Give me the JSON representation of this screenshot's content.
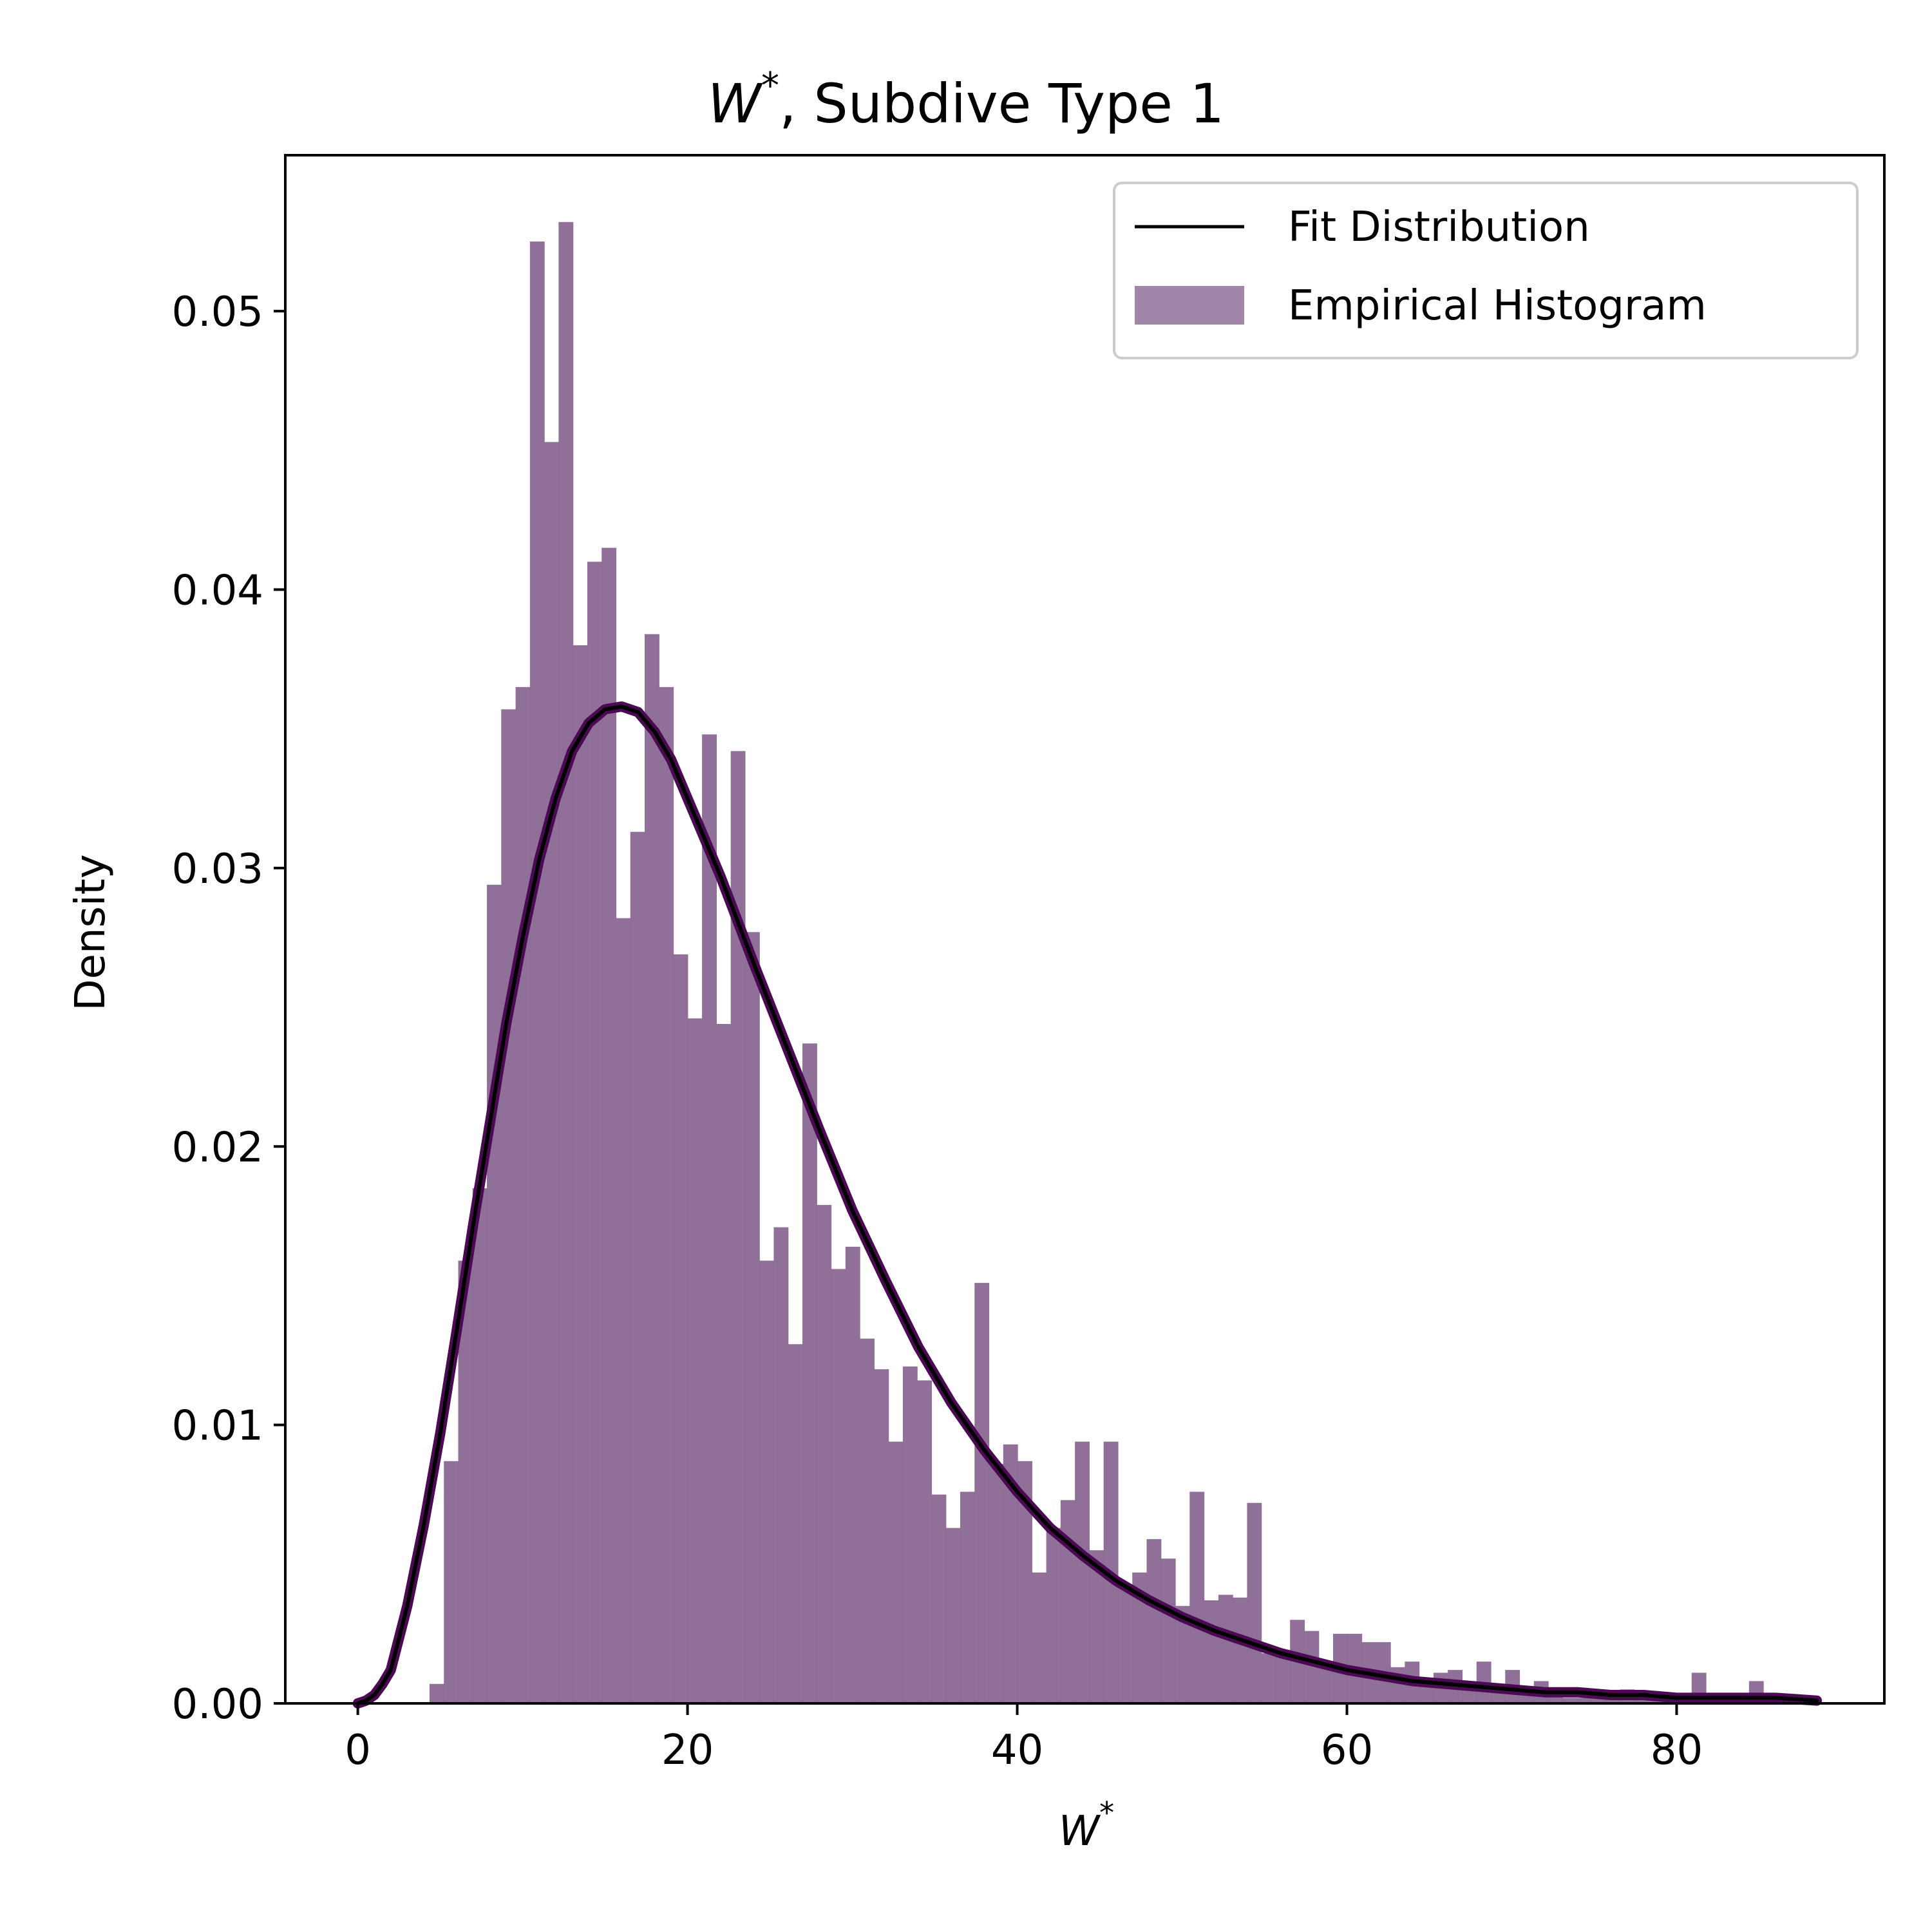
{
  "chart_data": {
    "type": "bar",
    "title": {
      "symbol": "W",
      "sup": "*",
      "text": ", Subdive Type 1"
    },
    "xlabel": {
      "symbol": "W",
      "sup": "*"
    },
    "ylabel": "Density",
    "xlim": [
      -4.4,
      92.6
    ],
    "ylim": [
      0,
      0.0556
    ],
    "xticks": [
      0,
      20,
      40,
      60,
      80
    ],
    "yticks": [
      0.0,
      0.01,
      0.02,
      0.03,
      0.04,
      0.05
    ],
    "ytick_labels": [
      "0.00",
      "0.01",
      "0.02",
      "0.03",
      "0.04",
      "0.05"
    ],
    "grid": false,
    "legend": {
      "placement": "top-right",
      "entries": [
        {
          "label": "Fit Distribution",
          "kind": "line"
        },
        {
          "label": "Empirical Histogram",
          "kind": "patch"
        }
      ]
    },
    "histogram": {
      "name": "Empirical Histogram",
      "color": "#8a6894",
      "bin_width": 0.87,
      "bins": [
        [
          0.0,
          0.0002
        ],
        [
          4.35,
          0.0007
        ],
        [
          5.22,
          0.0087
        ],
        [
          6.09,
          0.0159
        ],
        [
          6.96,
          0.0185
        ],
        [
          7.83,
          0.0294
        ],
        [
          8.7,
          0.0357
        ],
        [
          9.57,
          0.0365
        ],
        [
          10.44,
          0.0525
        ],
        [
          11.31,
          0.0453
        ],
        [
          12.18,
          0.0532
        ],
        [
          13.05,
          0.038
        ],
        [
          13.92,
          0.041
        ],
        [
          14.79,
          0.0415
        ],
        [
          15.66,
          0.0282
        ],
        [
          16.53,
          0.0313
        ],
        [
          17.4,
          0.0384
        ],
        [
          18.27,
          0.0365
        ],
        [
          19.14,
          0.0269
        ],
        [
          20.01,
          0.0246
        ],
        [
          20.88,
          0.0348
        ],
        [
          21.75,
          0.0244
        ],
        [
          22.62,
          0.0342
        ],
        [
          23.49,
          0.0277
        ],
        [
          24.36,
          0.0159
        ],
        [
          25.23,
          0.0171
        ],
        [
          26.1,
          0.0129
        ],
        [
          26.97,
          0.0237
        ],
        [
          27.84,
          0.0179
        ],
        [
          28.71,
          0.0156
        ],
        [
          29.58,
          0.0164
        ],
        [
          30.45,
          0.0131
        ],
        [
          31.32,
          0.012
        ],
        [
          32.19,
          0.0094
        ],
        [
          33.06,
          0.0121
        ],
        [
          33.93,
          0.0116
        ],
        [
          34.8,
          0.0075
        ],
        [
          35.67,
          0.0063
        ],
        [
          36.54,
          0.0076
        ],
        [
          37.41,
          0.0151
        ],
        [
          38.28,
          0.0086
        ],
        [
          39.15,
          0.0093
        ],
        [
          40.02,
          0.0087
        ],
        [
          40.89,
          0.0047
        ],
        [
          41.76,
          0.0063
        ],
        [
          42.63,
          0.0073
        ],
        [
          43.5,
          0.0094
        ],
        [
          44.37,
          0.0055
        ],
        [
          45.24,
          0.0094
        ],
        [
          46.11,
          0.0042
        ],
        [
          46.98,
          0.0047
        ],
        [
          47.85,
          0.0059
        ],
        [
          48.72,
          0.0052
        ],
        [
          49.59,
          0.0035
        ],
        [
          50.46,
          0.0076
        ],
        [
          51.33,
          0.0037
        ],
        [
          52.2,
          0.0039
        ],
        [
          53.07,
          0.0038
        ],
        [
          53.94,
          0.0072
        ],
        [
          54.81,
          0.0018
        ],
        [
          55.68,
          0.0017
        ],
        [
          56.55,
          0.003
        ],
        [
          57.42,
          0.0026
        ],
        [
          58.29,
          0.0014
        ],
        [
          59.16,
          0.0025
        ],
        [
          60.03,
          0.0025
        ],
        [
          60.9,
          0.0022
        ],
        [
          61.77,
          0.0022
        ],
        [
          62.64,
          0.0013
        ],
        [
          63.51,
          0.0015
        ],
        [
          64.38,
          0.0009
        ],
        [
          65.25,
          0.0011
        ],
        [
          66.12,
          0.0012
        ],
        [
          66.99,
          0.0006
        ],
        [
          67.86,
          0.0015
        ],
        [
          68.73,
          0.0005
        ],
        [
          69.6,
          0.0012
        ],
        [
          70.47,
          0.0004
        ],
        [
          71.34,
          0.0008
        ],
        [
          72.21,
          0.0003
        ],
        [
          73.08,
          0.0002
        ],
        [
          73.95,
          0.0002
        ],
        [
          74.82,
          0.0002
        ],
        [
          75.69,
          0.0002
        ],
        [
          76.56,
          0.0005
        ],
        [
          77.43,
          0.0002
        ],
        [
          78.3,
          0.0002
        ],
        [
          79.17,
          0.0002
        ],
        [
          80.04,
          0.0002
        ],
        [
          80.91,
          0.0011
        ],
        [
          81.78,
          0.0002
        ],
        [
          82.65,
          0.0002
        ],
        [
          83.52,
          0.0002
        ],
        [
          84.39,
          0.0008
        ]
      ]
    },
    "fit": {
      "name": "Fit Distribution",
      "color": "#000000",
      "halo_color": "#4c0a54",
      "x": [
        0.0,
        0.5,
        1.0,
        1.5,
        2.0,
        3.0,
        4.0,
        5.0,
        6.0,
        7.0,
        8.0,
        9.0,
        10.0,
        11.0,
        12.0,
        13.0,
        14.0,
        15.0,
        16.0,
        17.0,
        18.0,
        19.0,
        20.0,
        22.0,
        24.0,
        26.0,
        28.0,
        30.0,
        32.0,
        34.0,
        36.0,
        38.0,
        40.0,
        42.0,
        44.0,
        46.0,
        48.0,
        50.0,
        52.0,
        54.0,
        56.0,
        58.0,
        60.0,
        62.0,
        64.0,
        66.0,
        68.0,
        70.0,
        72.0,
        74.0,
        76.0,
        78.0,
        80.0,
        82.0,
        84.0,
        86.0,
        88.5
      ],
      "y": [
        0.0,
        0.0001,
        0.0003,
        0.0007,
        0.0012,
        0.0035,
        0.0064,
        0.0097,
        0.0134,
        0.0172,
        0.0208,
        0.0244,
        0.0275,
        0.0303,
        0.0325,
        0.0342,
        0.0352,
        0.0357,
        0.0358,
        0.0356,
        0.0349,
        0.0339,
        0.0325,
        0.0297,
        0.0266,
        0.0236,
        0.0206,
        0.0177,
        0.0152,
        0.0128,
        0.0108,
        0.0091,
        0.0076,
        0.0063,
        0.0053,
        0.0044,
        0.0037,
        0.0031,
        0.0026,
        0.0022,
        0.0018,
        0.0015,
        0.0012,
        0.001,
        0.0008,
        0.0007,
        0.0006,
        0.0005,
        0.0004,
        0.0004,
        0.0003,
        0.0003,
        0.0002,
        0.0002,
        0.0002,
        0.0002,
        0.0001
      ]
    }
  }
}
